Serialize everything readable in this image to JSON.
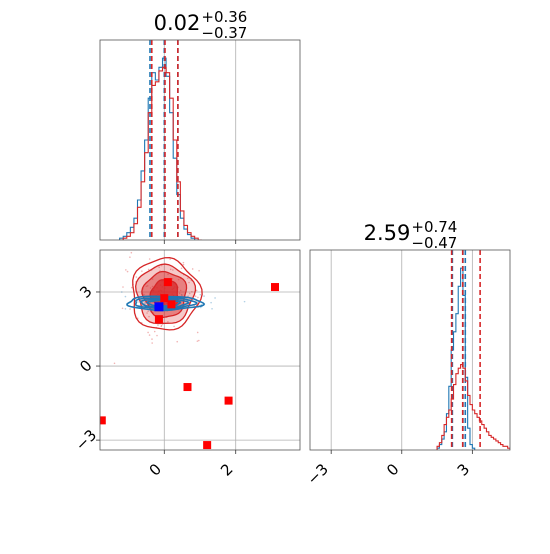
{
  "colors": {
    "series_a": "#1f77b4",
    "series_b": "#d62728",
    "marker": "#ff0000",
    "marker_truth": "#0000ff",
    "grid": "#b0b0b0",
    "frame": "#555555"
  },
  "chart_data": [
    {
      "panel": "top-left",
      "type": "histogram",
      "title": {
        "median": "0.02",
        "plus": "+0.36",
        "minus": "−0.37"
      },
      "xlim": [
        -1.8,
        3.8
      ],
      "grid": true,
      "x_ticks": [],
      "series": [
        {
          "color": "#1f77b4",
          "bin_edges": [
            -1.25,
            -1.15,
            -1.05,
            -0.95,
            -0.85,
            -0.75,
            -0.65,
            -0.55,
            -0.45,
            -0.35,
            -0.25,
            -0.15,
            -0.05,
            0.05,
            0.15,
            0.25,
            0.35,
            0.45,
            0.55,
            0.65,
            0.75,
            0.85,
            0.95,
            1.05
          ],
          "counts": [
            1,
            2,
            4,
            7,
            12,
            22,
            38,
            55,
            78,
            92,
            88,
            95,
            100,
            90,
            70,
            45,
            25,
            12,
            6,
            3,
            1,
            0,
            0
          ],
          "quantile_lines": [
            -0.4,
            0.0,
            0.38
          ]
        },
        {
          "color": "#d62728",
          "bin_edges": [
            -1.25,
            -1.15,
            -1.05,
            -0.95,
            -0.85,
            -0.75,
            -0.65,
            -0.55,
            -0.45,
            -0.35,
            -0.25,
            -0.15,
            -0.05,
            0.05,
            0.15,
            0.25,
            0.35,
            0.45,
            0.55,
            0.65,
            0.75,
            0.85,
            0.95,
            1.05
          ],
          "counts": [
            0,
            1,
            2,
            4,
            9,
            18,
            32,
            48,
            70,
            85,
            87,
            93,
            95,
            92,
            78,
            55,
            32,
            16,
            8,
            4,
            2,
            1,
            0
          ],
          "quantile_lines": [
            -0.35,
            0.02,
            0.38
          ]
        }
      ]
    },
    {
      "panel": "bottom-left",
      "type": "scatter-contour",
      "xlim": [
        -1.8,
        3.8
      ],
      "ylim": [
        -3.4,
        4.7
      ],
      "x_ticks": [
        {
          "value": 0,
          "label": "0"
        },
        {
          "value": 2,
          "label": "2"
        }
      ],
      "y_ticks": [
        {
          "value": -3,
          "label": "−3"
        },
        {
          "value": 0,
          "label": "0"
        },
        {
          "value": 3,
          "label": "3"
        }
      ],
      "grid": true,
      "contours": [
        {
          "color": "#1f77b4",
          "center": [
            0.0,
            2.55
          ],
          "levels": [
            [
              1.05,
              0.28
            ],
            [
              0.85,
              0.22
            ],
            [
              0.65,
              0.17
            ],
            [
              0.45,
              0.12
            ]
          ]
        },
        {
          "color": "#d62728",
          "center": [
            0.02,
            2.9
          ],
          "levels": [
            [
              0.95,
              1.45
            ],
            [
              0.8,
              1.2
            ],
            [
              0.6,
              0.92
            ],
            [
              0.38,
              0.6
            ]
          ]
        }
      ],
      "outlier_markers": [
        {
          "x": 3.1,
          "y": 3.2,
          "color": "#ff0000"
        },
        {
          "x": 0.65,
          "y": -0.85,
          "color": "#ff0000"
        },
        {
          "x": 1.8,
          "y": -1.4,
          "color": "#ff0000"
        },
        {
          "x": 1.2,
          "y": -3.2,
          "color": "#ff0000"
        },
        {
          "x": -1.75,
          "y": -2.2,
          "color": "#ff0000"
        },
        {
          "x": 0.0,
          "y": 2.75,
          "color": "#ff0000"
        },
        {
          "x": 0.2,
          "y": 2.5,
          "color": "#ff0000"
        },
        {
          "x": -0.15,
          "y": 1.9,
          "color": "#ff0000"
        },
        {
          "x": 0.1,
          "y": 3.4,
          "color": "#ff0000"
        }
      ],
      "truth_marker": {
        "x": -0.15,
        "y": 2.4,
        "color": "#0000ff"
      }
    },
    {
      "panel": "bottom-right",
      "type": "histogram",
      "title": {
        "median": "2.59",
        "plus": "+0.74",
        "minus": "−0.47"
      },
      "xlim": [
        -3.9,
        4.6
      ],
      "grid": true,
      "x_ticks": [
        {
          "value": -3,
          "label": "−3"
        },
        {
          "value": 0,
          "label": "0"
        },
        {
          "value": 3,
          "label": "3"
        }
      ],
      "series": [
        {
          "color": "#1f77b4",
          "bin_edges": [
            1.5,
            1.6,
            1.7,
            1.8,
            1.9,
            2.0,
            2.1,
            2.2,
            2.3,
            2.4,
            2.5,
            2.6,
            2.7,
            2.8,
            2.9,
            3.0,
            3.1
          ],
          "counts": [
            1,
            3,
            6,
            10,
            20,
            35,
            55,
            65,
            75,
            90,
            100,
            85,
            40,
            12,
            3,
            1
          ],
          "quantile_lines": [
            2.15,
            2.6,
            2.7
          ]
        },
        {
          "color": "#d62728",
          "bin_edges": [
            1.5,
            1.6,
            1.7,
            1.8,
            1.9,
            2.0,
            2.1,
            2.2,
            2.3,
            2.4,
            2.5,
            2.6,
            2.7,
            2.8,
            2.9,
            3.0,
            3.1,
            3.2,
            3.3,
            3.4,
            3.5,
            3.6,
            3.7,
            3.8,
            3.9,
            4.0,
            4.1,
            4.2,
            4.3,
            4.4,
            4.5,
            4.6
          ],
          "counts": [
            2,
            4,
            8,
            14,
            18,
            22,
            28,
            36,
            42,
            45,
            47,
            45,
            38,
            30,
            25,
            22,
            20,
            18,
            16,
            14,
            12,
            10,
            8,
            7,
            6,
            5,
            4,
            3,
            2,
            2,
            1
          ],
          "quantile_lines": [
            2.12,
            2.59,
            3.33
          ]
        }
      ]
    }
  ]
}
